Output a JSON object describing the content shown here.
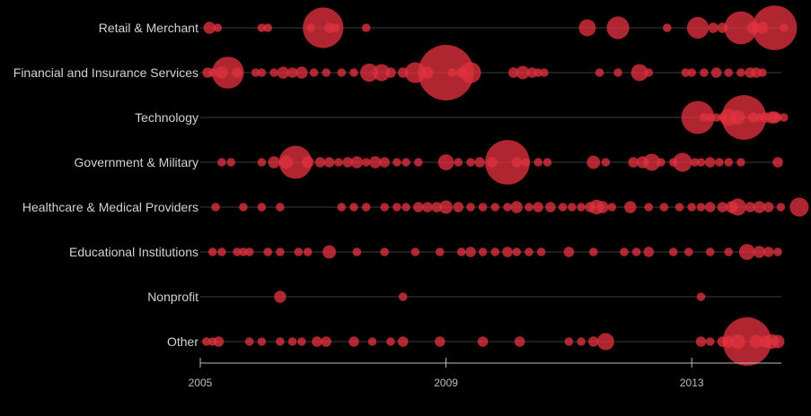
{
  "chart_data": {
    "type": "scatter",
    "title": "",
    "xlabel": "",
    "ylabel": "",
    "xlim": [
      2005,
      2014.5
    ],
    "x_ticks": [
      2005,
      2009,
      2013
    ],
    "marker_color": "#e0313f",
    "size_encoding": "bubble area",
    "categories": [
      "Retail & Merchant",
      "Financial and Insurance Services",
      "Technology",
      "Government & Military",
      "Healthcare & Medical Providers",
      "Educational Institutions",
      "Nonprofit",
      "Other"
    ],
    "series": [
      {
        "category": "Retail & Merchant",
        "points": [
          [
            2005.15,
            4
          ],
          [
            2005.28,
            2
          ],
          [
            2006.0,
            2
          ],
          [
            2006.1,
            2
          ],
          [
            2006.8,
            2
          ],
          [
            2007.0,
            45
          ],
          [
            2007.1,
            3
          ],
          [
            2007.2,
            2
          ],
          [
            2007.7,
            2
          ],
          [
            2011.3,
            8
          ],
          [
            2011.8,
            14
          ],
          [
            2012.6,
            2
          ],
          [
            2013.1,
            13
          ],
          [
            2013.35,
            3
          ],
          [
            2013.5,
            3
          ],
          [
            2013.8,
            30
          ],
          [
            2014.0,
            4
          ],
          [
            2014.15,
            4
          ],
          [
            2014.35,
            55
          ],
          [
            2014.5,
            2
          ]
        ]
      },
      {
        "category": "Financial and Insurance Services",
        "points": [
          [
            2005.12,
            3
          ],
          [
            2005.2,
            2
          ],
          [
            2005.35,
            4
          ],
          [
            2005.45,
            28
          ],
          [
            2005.6,
            3
          ],
          [
            2005.9,
            2
          ],
          [
            2006.0,
            2
          ],
          [
            2006.2,
            2
          ],
          [
            2006.35,
            4
          ],
          [
            2006.5,
            3
          ],
          [
            2006.65,
            4
          ],
          [
            2006.85,
            2
          ],
          [
            2007.05,
            2
          ],
          [
            2007.3,
            2
          ],
          [
            2007.5,
            2
          ],
          [
            2007.75,
            9
          ],
          [
            2007.95,
            8
          ],
          [
            2008.1,
            3
          ],
          [
            2008.3,
            3
          ],
          [
            2008.5,
            12
          ],
          [
            2008.7,
            4
          ],
          [
            2009.1,
            2
          ],
          [
            2009.25,
            3
          ],
          [
            2009.4,
            12
          ],
          [
            2010.1,
            3
          ],
          [
            2010.25,
            5
          ],
          [
            2010.4,
            3
          ],
          [
            2010.5,
            2
          ],
          [
            2010.6,
            2
          ],
          [
            2011.5,
            2
          ],
          [
            2011.8,
            2
          ],
          [
            2012.15,
            8
          ],
          [
            2012.3,
            2
          ],
          [
            2012.9,
            2
          ],
          [
            2013.0,
            2
          ],
          [
            2013.2,
            2
          ],
          [
            2013.4,
            3
          ],
          [
            2013.6,
            2
          ],
          [
            2013.8,
            2
          ],
          [
            2013.95,
            3
          ],
          [
            2014.05,
            3
          ],
          [
            2014.15,
            2
          ],
          [
            2009.0,
            85
          ]
        ]
      },
      {
        "category": "Technology",
        "points": [
          [
            2013.1,
            30
          ],
          [
            2013.2,
            2
          ],
          [
            2013.3,
            2
          ],
          [
            2013.4,
            2
          ],
          [
            2013.5,
            2
          ],
          [
            2013.6,
            8
          ],
          [
            2013.75,
            6
          ],
          [
            2013.85,
            55
          ],
          [
            2014.0,
            3
          ],
          [
            2014.1,
            2
          ],
          [
            2014.2,
            3
          ],
          [
            2014.3,
            4
          ],
          [
            2014.35,
            4
          ],
          [
            2014.4,
            2
          ],
          [
            2014.5,
            2
          ]
        ]
      },
      {
        "category": "Government & Military",
        "points": [
          [
            2005.35,
            2
          ],
          [
            2005.5,
            2
          ],
          [
            2006.0,
            2
          ],
          [
            2006.2,
            4
          ],
          [
            2006.4,
            5
          ],
          [
            2006.55,
            30
          ],
          [
            2006.75,
            4
          ],
          [
            2006.95,
            3
          ],
          [
            2007.1,
            3
          ],
          [
            2007.25,
            2
          ],
          [
            2007.4,
            3
          ],
          [
            2007.55,
            4
          ],
          [
            2007.7,
            2
          ],
          [
            2007.85,
            4
          ],
          [
            2008.0,
            3
          ],
          [
            2008.2,
            2
          ],
          [
            2008.35,
            2
          ],
          [
            2008.55,
            2
          ],
          [
            2009.0,
            7
          ],
          [
            2009.2,
            2
          ],
          [
            2009.4,
            2
          ],
          [
            2009.55,
            3
          ],
          [
            2009.75,
            3
          ],
          [
            2010.0,
            55
          ],
          [
            2010.15,
            3
          ],
          [
            2010.3,
            2
          ],
          [
            2010.5,
            2
          ],
          [
            2010.65,
            2
          ],
          [
            2011.4,
            5
          ],
          [
            2011.6,
            2
          ],
          [
            2012.05,
            3
          ],
          [
            2012.2,
            4
          ],
          [
            2012.35,
            8
          ],
          [
            2012.5,
            2
          ],
          [
            2012.7,
            2
          ],
          [
            2012.85,
            10
          ],
          [
            2013.05,
            2
          ],
          [
            2013.15,
            2
          ],
          [
            2013.3,
            3
          ],
          [
            2013.45,
            2
          ],
          [
            2013.6,
            2
          ],
          [
            2013.8,
            2
          ],
          [
            2014.4,
            3
          ]
        ]
      },
      {
        "category": "Healthcare & Medical Providers",
        "points": [
          [
            2005.25,
            2
          ],
          [
            2005.7,
            2
          ],
          [
            2006.0,
            2
          ],
          [
            2006.3,
            2
          ],
          [
            2007.3,
            2
          ],
          [
            2007.5,
            2
          ],
          [
            2007.7,
            2
          ],
          [
            2008.0,
            2
          ],
          [
            2008.2,
            2
          ],
          [
            2008.35,
            2
          ],
          [
            2008.55,
            3
          ],
          [
            2008.7,
            3
          ],
          [
            2008.85,
            3
          ],
          [
            2009.0,
            5
          ],
          [
            2009.2,
            3
          ],
          [
            2009.4,
            2
          ],
          [
            2009.6,
            2
          ],
          [
            2009.8,
            2
          ],
          [
            2010.0,
            2
          ],
          [
            2010.15,
            4
          ],
          [
            2010.35,
            2
          ],
          [
            2010.5,
            3
          ],
          [
            2010.7,
            3
          ],
          [
            2010.9,
            2
          ],
          [
            2011.05,
            2
          ],
          [
            2011.2,
            2
          ],
          [
            2011.35,
            3
          ],
          [
            2011.45,
            6
          ],
          [
            2011.55,
            4
          ],
          [
            2011.7,
            2
          ],
          [
            2012.0,
            4
          ],
          [
            2012.3,
            2
          ],
          [
            2012.55,
            2
          ],
          [
            2012.8,
            2
          ],
          [
            2013.0,
            2
          ],
          [
            2013.15,
            2
          ],
          [
            2013.3,
            3
          ],
          [
            2013.5,
            3
          ],
          [
            2013.65,
            4
          ],
          [
            2013.75,
            8
          ],
          [
            2013.95,
            3
          ],
          [
            2014.1,
            4
          ],
          [
            2014.25,
            3
          ],
          [
            2014.45,
            2
          ],
          [
            2014.75,
            10
          ]
        ]
      },
      {
        "category": "Educational Institutions",
        "points": [
          [
            2005.2,
            2
          ],
          [
            2005.35,
            2
          ],
          [
            2005.6,
            2
          ],
          [
            2005.7,
            2
          ],
          [
            2005.8,
            2
          ],
          [
            2006.1,
            2
          ],
          [
            2006.3,
            2
          ],
          [
            2006.6,
            2
          ],
          [
            2006.75,
            2
          ],
          [
            2007.1,
            5
          ],
          [
            2007.55,
            2
          ],
          [
            2008.0,
            2
          ],
          [
            2008.5,
            2
          ],
          [
            2008.9,
            2
          ],
          [
            2009.25,
            2
          ],
          [
            2009.4,
            3
          ],
          [
            2009.6,
            2
          ],
          [
            2009.8,
            2
          ],
          [
            2010.0,
            3
          ],
          [
            2010.15,
            2
          ],
          [
            2010.35,
            2
          ],
          [
            2010.55,
            2
          ],
          [
            2011.0,
            3
          ],
          [
            2011.4,
            2
          ],
          [
            2011.9,
            2
          ],
          [
            2012.1,
            2
          ],
          [
            2012.3,
            3
          ],
          [
            2012.7,
            2
          ],
          [
            2012.95,
            2
          ],
          [
            2013.3,
            2
          ],
          [
            2013.6,
            2
          ],
          [
            2013.9,
            7
          ],
          [
            2014.1,
            4
          ],
          [
            2014.25,
            3
          ],
          [
            2014.4,
            2
          ]
        ]
      },
      {
        "category": "Nonprofit",
        "points": [
          [
            2006.3,
            4
          ],
          [
            2008.3,
            2
          ],
          [
            2013.15,
            2
          ]
        ]
      },
      {
        "category": "Other",
        "points": [
          [
            2005.1,
            2
          ],
          [
            2005.2,
            2
          ],
          [
            2005.3,
            3
          ],
          [
            2005.8,
            2
          ],
          [
            2006.0,
            2
          ],
          [
            2006.3,
            2
          ],
          [
            2006.5,
            2
          ],
          [
            2006.65,
            2
          ],
          [
            2006.9,
            3
          ],
          [
            2007.05,
            3
          ],
          [
            2007.5,
            3
          ],
          [
            2007.8,
            2
          ],
          [
            2008.1,
            2
          ],
          [
            2008.3,
            3
          ],
          [
            2008.9,
            3
          ],
          [
            2009.6,
            3
          ],
          [
            2010.2,
            3
          ],
          [
            2011.0,
            2
          ],
          [
            2011.2,
            2
          ],
          [
            2011.4,
            3
          ],
          [
            2011.6,
            8
          ],
          [
            2013.15,
            3
          ],
          [
            2013.3,
            2
          ],
          [
            2013.5,
            3
          ],
          [
            2013.6,
            4
          ],
          [
            2013.75,
            6
          ],
          [
            2013.9,
            65
          ],
          [
            2014.05,
            5
          ],
          [
            2014.2,
            4
          ],
          [
            2014.3,
            6
          ],
          [
            2014.4,
            5
          ]
        ]
      }
    ]
  }
}
